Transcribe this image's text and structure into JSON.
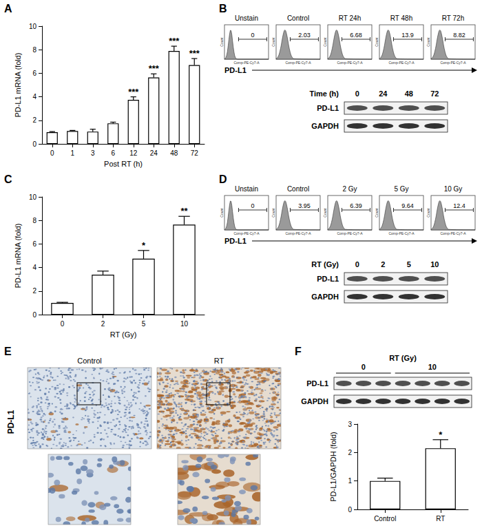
{
  "chart_data": [
    {
      "type": "bar",
      "categories": [
        "0",
        "1",
        "3",
        "6",
        "12",
        "24",
        "48",
        "72"
      ],
      "values": [
        1.0,
        1.1,
        1.05,
        1.75,
        3.75,
        5.65,
        7.9,
        6.7
      ],
      "errors": [
        0.05,
        0.05,
        0.2,
        0.1,
        0.25,
        0.3,
        0.4,
        0.55
      ],
      "annotations": [
        null,
        null,
        null,
        null,
        "***",
        "***",
        "***",
        "***"
      ],
      "x_label": "Post RT (h)",
      "y_label": "PD-L1 mRNA (fold)",
      "ylim": [
        0,
        10
      ],
      "yticks": [
        0,
        2,
        4,
        6,
        8,
        10
      ],
      "color": "#ffffff",
      "grid": false
    },
    {
      "type": "bar",
      "categories": [
        "0",
        "2",
        "5",
        "10"
      ],
      "values": [
        1.0,
        3.4,
        4.75,
        7.65
      ],
      "errors": [
        0.05,
        0.3,
        0.7,
        0.7
      ],
      "annotations": [
        null,
        null,
        "*",
        "**"
      ],
      "x_label": "RT (Gy)",
      "y_label": "PD-L1 mRNA (fold)",
      "ylim": [
        0,
        10
      ],
      "yticks": [
        0,
        2,
        4,
        6,
        8,
        10
      ],
      "color": "#ffffff",
      "grid": false
    },
    {
      "type": "bar",
      "categories": [
        "Control",
        "RT"
      ],
      "values": [
        1.0,
        2.15
      ],
      "errors": [
        0.1,
        0.3
      ],
      "annotations": [
        null,
        "*"
      ],
      "y_label": "PD-L1/GAPDH (fold)",
      "ylim": [
        0,
        3
      ],
      "yticks": [
        0,
        1,
        2,
        3
      ],
      "color": "#ffffff",
      "grid": false
    }
  ],
  "figure": {
    "panel_labels": [
      "A",
      "B",
      "C",
      "D",
      "E",
      "F"
    ],
    "flow": [
      {
        "axis_x_label": "Comp-PE-Cy7-A",
        "axis_y_label": "Count",
        "marker_label": "PD-L1",
        "plots": [
          {
            "title": "Unstain",
            "percent": 0
          },
          {
            "title": "Control",
            "percent": 2.03
          },
          {
            "title": "RT 24h",
            "percent": 6.68
          },
          {
            "title": "RT 48h",
            "percent": 13.9
          },
          {
            "title": "RT 72h",
            "percent": 8.82
          }
        ]
      },
      {
        "axis_x_label": "Comp-PE-Cy7-A",
        "axis_y_label": "Count",
        "marker_label": "PD-L1",
        "plots": [
          {
            "title": "Unstain",
            "percent": 0
          },
          {
            "title": "Control",
            "percent": 3.95
          },
          {
            "title": "2 Gy",
            "percent": 6.39
          },
          {
            "title": "5 Gy",
            "percent": 9.64
          },
          {
            "title": "10 Gy",
            "percent": 12.4
          }
        ]
      }
    ],
    "blots": [
      {
        "header": "Time (h)",
        "lanes": [
          "0",
          "24",
          "48",
          "72"
        ],
        "rows": [
          "PD-L1",
          "GAPDH"
        ]
      },
      {
        "header": "RT (Gy)",
        "lanes": [
          "0",
          "2",
          "5",
          "10"
        ],
        "rows": [
          "PD-L1",
          "GAPDH"
        ]
      },
      {
        "header": "RT (Gy)",
        "groups": [
          {
            "label": "0",
            "lanes": 3
          },
          {
            "label": "10",
            "lanes": 4
          }
        ],
        "rows": [
          "PD-L1",
          "GAPDH"
        ]
      }
    ],
    "ihc": {
      "row_label": "PD-L1",
      "columns": [
        "Control",
        "RT"
      ]
    }
  }
}
